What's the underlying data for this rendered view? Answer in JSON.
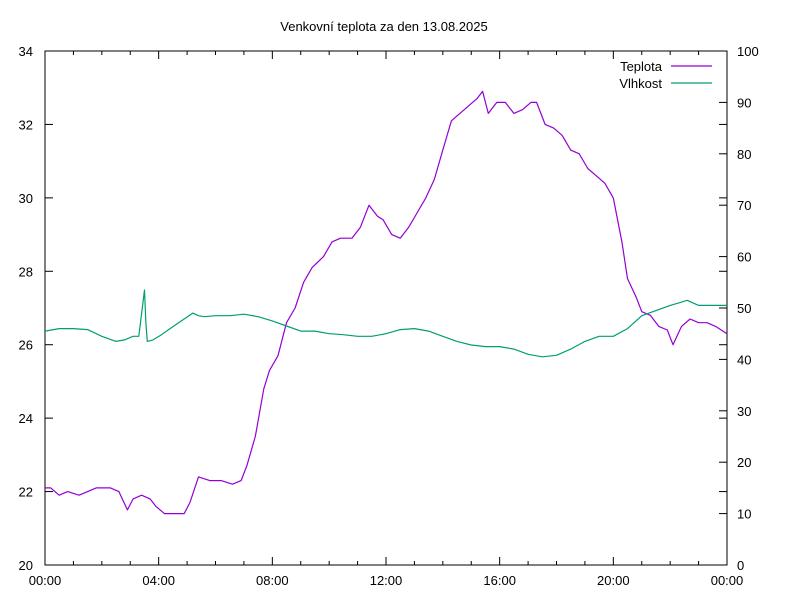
{
  "chart_data": {
    "type": "line",
    "title": "Venkovní teplota za den 13.08.2025",
    "xlabel": "",
    "ylabel": "",
    "y2label": "",
    "x_unit": "hours",
    "x_ticks": [
      "00:00",
      "04:00",
      "08:00",
      "12:00",
      "16:00",
      "20:00",
      "00:00"
    ],
    "xlim": [
      0,
      24
    ],
    "ylim": [
      20,
      34
    ],
    "y_ticks": [
      20,
      22,
      24,
      26,
      28,
      30,
      32,
      34
    ],
    "y2lim": [
      0,
      100
    ],
    "y2_ticks": [
      0,
      10,
      20,
      30,
      40,
      50,
      60,
      70,
      80,
      90,
      100
    ],
    "grid": false,
    "legend_position": "top-right",
    "series": [
      {
        "name": "Teplota",
        "axis": "left",
        "color": "#9400d3",
        "x": [
          0.0,
          0.2,
          0.5,
          0.8,
          1.2,
          1.5,
          1.8,
          2.0,
          2.3,
          2.6,
          2.9,
          3.1,
          3.4,
          3.7,
          3.9,
          4.2,
          4.5,
          4.9,
          5.1,
          5.4,
          5.8,
          6.2,
          6.6,
          6.9,
          7.1,
          7.4,
          7.7,
          7.9,
          8.2,
          8.5,
          8.8,
          9.1,
          9.4,
          9.8,
          10.1,
          10.4,
          10.8,
          11.1,
          11.4,
          11.7,
          11.9,
          12.2,
          12.5,
          12.8,
          13.1,
          13.4,
          13.7,
          14.0,
          14.3,
          14.6,
          14.9,
          15.2,
          15.4,
          15.6,
          15.9,
          16.2,
          16.5,
          16.8,
          17.1,
          17.3,
          17.6,
          17.9,
          18.2,
          18.5,
          18.8,
          19.1,
          19.4,
          19.7,
          20.0,
          20.3,
          20.5,
          20.8,
          21.0,
          21.3,
          21.6,
          21.9,
          22.1,
          22.4,
          22.7,
          23.0,
          23.3,
          23.6,
          24.0
        ],
        "values": [
          22.1,
          22.1,
          21.9,
          22.0,
          21.9,
          22.0,
          22.1,
          22.1,
          22.1,
          22.0,
          21.5,
          21.8,
          21.9,
          21.8,
          21.6,
          21.4,
          21.4,
          21.4,
          21.7,
          22.4,
          22.3,
          22.3,
          22.2,
          22.3,
          22.7,
          23.5,
          24.8,
          25.3,
          25.7,
          26.6,
          27.0,
          27.7,
          28.1,
          28.4,
          28.8,
          28.9,
          28.9,
          29.2,
          29.8,
          29.5,
          29.4,
          29.0,
          28.9,
          29.2,
          29.6,
          30.0,
          30.5,
          31.3,
          32.1,
          32.3,
          32.5,
          32.7,
          32.9,
          32.3,
          32.6,
          32.6,
          32.3,
          32.4,
          32.6,
          32.6,
          32.0,
          31.9,
          31.7,
          31.3,
          31.2,
          30.8,
          30.6,
          30.4,
          30.0,
          28.8,
          27.8,
          27.3,
          26.9,
          26.8,
          26.5,
          26.4,
          26.0,
          26.5,
          26.7,
          26.6,
          26.6,
          26.5,
          26.3
        ]
      },
      {
        "name": "Vlhkost",
        "axis": "right",
        "color": "#009e73",
        "x": [
          0.0,
          0.5,
          1.0,
          1.5,
          2.0,
          2.5,
          2.8,
          3.1,
          3.3,
          3.5,
          3.55,
          3.6,
          3.8,
          4.1,
          4.4,
          4.8,
          5.2,
          5.4,
          5.6,
          6.0,
          6.5,
          7.0,
          7.5,
          8.0,
          8.5,
          9.0,
          9.5,
          10.0,
          10.5,
          11.0,
          11.5,
          12.0,
          12.5,
          13.0,
          13.5,
          14.0,
          14.5,
          15.0,
          15.5,
          16.0,
          16.5,
          17.0,
          17.5,
          18.0,
          18.5,
          19.0,
          19.5,
          20.0,
          20.5,
          21.0,
          21.5,
          22.0,
          22.3,
          22.6,
          23.0,
          23.5,
          24.0
        ],
        "values": [
          45.5,
          46.0,
          46.0,
          45.8,
          44.5,
          43.5,
          43.8,
          44.5,
          44.5,
          53.5,
          47.0,
          43.5,
          43.8,
          44.8,
          46.0,
          47.5,
          49.0,
          48.5,
          48.3,
          48.5,
          48.5,
          48.8,
          48.3,
          47.5,
          46.5,
          45.5,
          45.5,
          45.0,
          44.8,
          44.5,
          44.5,
          45.0,
          45.8,
          46.0,
          45.5,
          44.5,
          43.5,
          42.8,
          42.5,
          42.5,
          42.0,
          41.0,
          40.5,
          40.8,
          42.0,
          43.5,
          44.5,
          44.5,
          46.0,
          48.5,
          49.5,
          50.5,
          51.0,
          51.5,
          50.5,
          50.5,
          50.5
        ]
      }
    ]
  }
}
